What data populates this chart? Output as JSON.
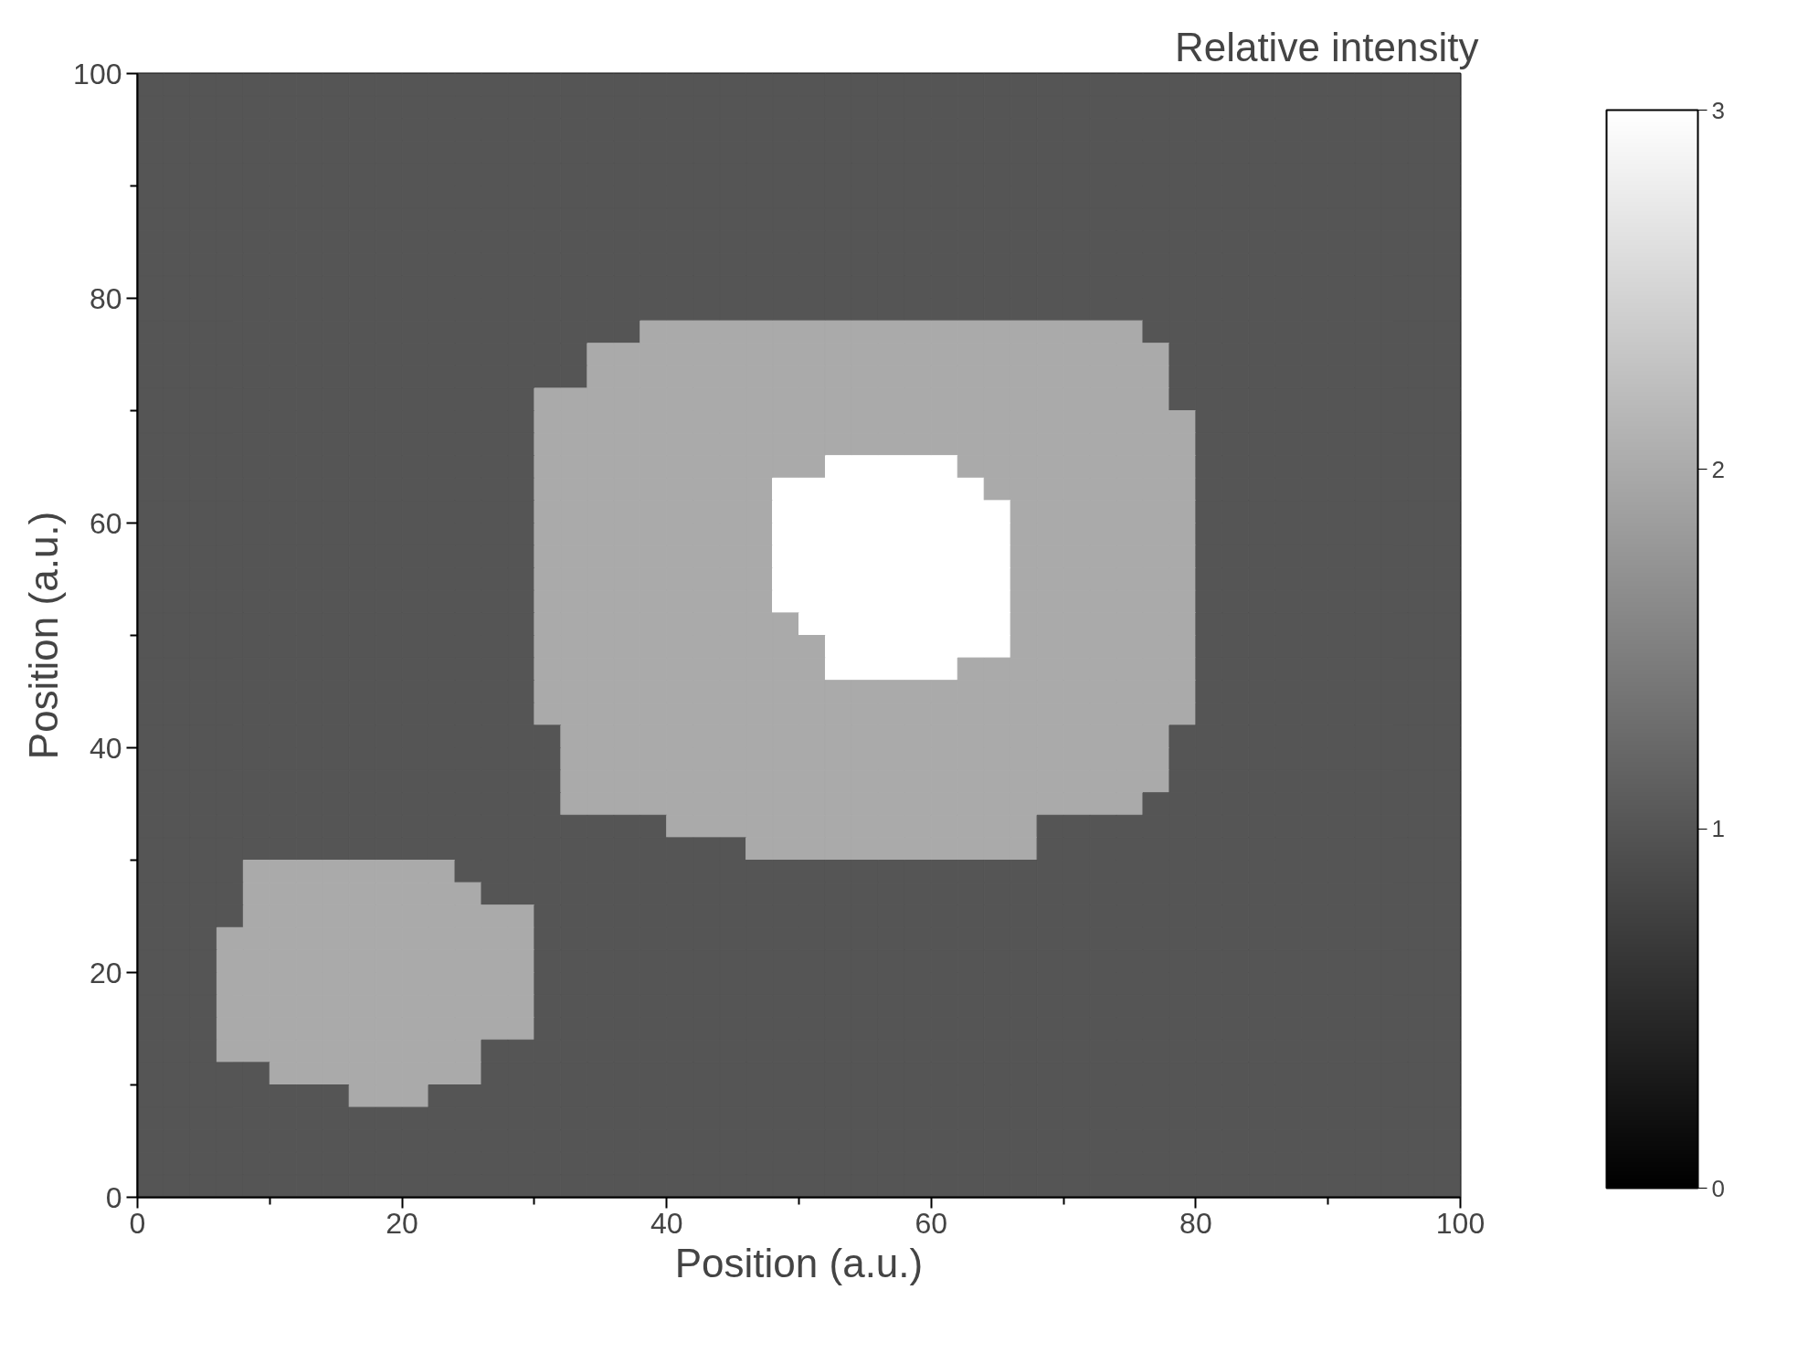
{
  "chart_data": {
    "type": "heatmap",
    "xlabel": "Position (a.u.)",
    "ylabel": "Position (a.u.)",
    "clabel": "Relative intensity",
    "xlim": [
      0,
      100
    ],
    "ylim": [
      0,
      100
    ],
    "xticks": [
      0,
      {
        "value": 10,
        "label": null
      },
      20,
      {
        "value": 30,
        "label": null
      },
      40,
      {
        "value": 50,
        "label": null
      },
      60,
      {
        "value": 70,
        "label": null
      },
      80,
      {
        "value": 90,
        "label": null
      },
      100
    ],
    "yticks": [
      0,
      {
        "value": 10,
        "label": null
      },
      20,
      {
        "value": 30,
        "label": null
      },
      40,
      {
        "value": 50,
        "label": null
      },
      60,
      {
        "value": 70,
        "label": null
      },
      80,
      {
        "value": 90,
        "label": null
      },
      100
    ],
    "clim": [
      0,
      3
    ],
    "cticks": [
      0,
      1,
      2,
      3
    ],
    "cells": [
      [
        1,
        1,
        1,
        1,
        1,
        1,
        1,
        1,
        1,
        1,
        1,
        1,
        1,
        1,
        1,
        1,
        1,
        1,
        1,
        1,
        1,
        1,
        1,
        1,
        1,
        1,
        1,
        1,
        1,
        1,
        1,
        1,
        1,
        1,
        1,
        1,
        1,
        1,
        1,
        1,
        1,
        1,
        1,
        1,
        1,
        1,
        1,
        1,
        1,
        1
      ],
      [
        1,
        1,
        1,
        1,
        1,
        1,
        1,
        1,
        1,
        1,
        1,
        1,
        1,
        1,
        1,
        1,
        1,
        1,
        1,
        1,
        1,
        1,
        1,
        1,
        1,
        1,
        1,
        1,
        1,
        1,
        1,
        1,
        1,
        1,
        1,
        1,
        1,
        1,
        1,
        1,
        1,
        1,
        1,
        1,
        1,
        1,
        1,
        1,
        1,
        1
      ],
      [
        1,
        1,
        1,
        1,
        1,
        1,
        1,
        1,
        1,
        1,
        1,
        1,
        1,
        1,
        1,
        1,
        1,
        1,
        1,
        1,
        1,
        1,
        1,
        1,
        1,
        1,
        1,
        1,
        1,
        1,
        1,
        1,
        1,
        1,
        1,
        1,
        1,
        1,
        1,
        1,
        1,
        1,
        1,
        1,
        1,
        1,
        1,
        1,
        1,
        1
      ],
      [
        1,
        1,
        1,
        1,
        1,
        1,
        1,
        1,
        1,
        1,
        1,
        1,
        1,
        1,
        1,
        1,
        1,
        1,
        1,
        1,
        1,
        1,
        1,
        1,
        1,
        1,
        1,
        1,
        1,
        1,
        1,
        1,
        1,
        1,
        1,
        1,
        1,
        1,
        1,
        1,
        1,
        1,
        1,
        1,
        1,
        1,
        1,
        1,
        1,
        1
      ],
      [
        1,
        1,
        1,
        1,
        1,
        1,
        1,
        1,
        1,
        1,
        1,
        1,
        1,
        1,
        1,
        1,
        1,
        1,
        1,
        1,
        1,
        1,
        1,
        1,
        1,
        1,
        1,
        1,
        1,
        1,
        1,
        1,
        1,
        1,
        1,
        1,
        1,
        1,
        1,
        1,
        1,
        1,
        1,
        1,
        1,
        1,
        1,
        1,
        1,
        1
      ],
      [
        1,
        1,
        1,
        1,
        1,
        1,
        1,
        1,
        1,
        1,
        1,
        1,
        1,
        1,
        1,
        1,
        1,
        1,
        1,
        1,
        1,
        1,
        1,
        1,
        1,
        1,
        1,
        1,
        1,
        1,
        1,
        1,
        1,
        1,
        1,
        1,
        1,
        1,
        1,
        1,
        1,
        1,
        1,
        1,
        1,
        1,
        1,
        1,
        1,
        1
      ],
      [
        1,
        1,
        1,
        1,
        1,
        1,
        1,
        1,
        1,
        1,
        1,
        1,
        1,
        1,
        1,
        1,
        1,
        1,
        1,
        1,
        1,
        1,
        1,
        1,
        1,
        1,
        1,
        1,
        1,
        1,
        1,
        1,
        1,
        1,
        1,
        1,
        1,
        1,
        1,
        1,
        1,
        1,
        1,
        1,
        1,
        1,
        1,
        1,
        1,
        1
      ],
      [
        1,
        1,
        1,
        1,
        1,
        1,
        1,
        1,
        1,
        1,
        1,
        1,
        1,
        1,
        1,
        1,
        1,
        1,
        1,
        1,
        1,
        1,
        1,
        1,
        1,
        1,
        1,
        1,
        1,
        1,
        1,
        1,
        1,
        1,
        1,
        1,
        1,
        1,
        1,
        1,
        1,
        1,
        1,
        1,
        1,
        1,
        1,
        1,
        1,
        1
      ],
      [
        1,
        1,
        1,
        1,
        1,
        1,
        1,
        1,
        1,
        1,
        1,
        1,
        1,
        1,
        1,
        1,
        1,
        1,
        1,
        1,
        1,
        1,
        1,
        1,
        1,
        1,
        1,
        1,
        1,
        1,
        1,
        1,
        1,
        1,
        1,
        1,
        1,
        1,
        1,
        1,
        1,
        1,
        1,
        1,
        1,
        1,
        1,
        1,
        1,
        1
      ],
      [
        1,
        1,
        1,
        1,
        1,
        1,
        1,
        1,
        1,
        1,
        1,
        1,
        1,
        1,
        1,
        1,
        1,
        1,
        1,
        1,
        1,
        1,
        1,
        1,
        1,
        1,
        1,
        1,
        1,
        1,
        1,
        1,
        1,
        1,
        1,
        1,
        1,
        1,
        1,
        1,
        1,
        1,
        1,
        1,
        1,
        1,
        1,
        1,
        1,
        1
      ],
      [
        1,
        1,
        1,
        1,
        1,
        1,
        1,
        1,
        1,
        1,
        1,
        1,
        1,
        1,
        1,
        1,
        1,
        1,
        1,
        1,
        1,
        1,
        1,
        1,
        1,
        1,
        1,
        1,
        1,
        1,
        1,
        1,
        1,
        1,
        1,
        1,
        1,
        1,
        1,
        1,
        1,
        1,
        1,
        1,
        1,
        1,
        1,
        1,
        1,
        1
      ],
      [
        1,
        1,
        1,
        1,
        1,
        1,
        1,
        1,
        1,
        1,
        1,
        1,
        1,
        1,
        1,
        1,
        1,
        1,
        1,
        2,
        2,
        2,
        2,
        2,
        2,
        2,
        2,
        2,
        2,
        2,
        2,
        2,
        2,
        2,
        2,
        2,
        2,
        2,
        1,
        1,
        1,
        1,
        1,
        1,
        1,
        1,
        1,
        1,
        1,
        1
      ],
      [
        1,
        1,
        1,
        1,
        1,
        1,
        1,
        1,
        1,
        1,
        1,
        1,
        1,
        1,
        1,
        1,
        1,
        2,
        2,
        2,
        2,
        2,
        2,
        2,
        2,
        2,
        2,
        2,
        2,
        2,
        2,
        2,
        2,
        2,
        2,
        2,
        2,
        2,
        2,
        1,
        1,
        1,
        1,
        1,
        1,
        1,
        1,
        1,
        1,
        1
      ],
      [
        1,
        1,
        1,
        1,
        1,
        1,
        1,
        1,
        1,
        1,
        1,
        1,
        1,
        1,
        1,
        1,
        1,
        2,
        2,
        2,
        2,
        2,
        2,
        2,
        2,
        2,
        2,
        2,
        2,
        2,
        2,
        2,
        2,
        2,
        2,
        2,
        2,
        2,
        2,
        1,
        1,
        1,
        1,
        1,
        1,
        1,
        1,
        1,
        1,
        1
      ],
      [
        1,
        1,
        1,
        1,
        1,
        1,
        1,
        1,
        1,
        1,
        1,
        1,
        1,
        1,
        1,
        2,
        2,
        2,
        2,
        2,
        2,
        2,
        2,
        2,
        2,
        2,
        2,
        2,
        2,
        2,
        2,
        2,
        2,
        2,
        2,
        2,
        2,
        2,
        2,
        1,
        1,
        1,
        1,
        1,
        1,
        1,
        1,
        1,
        1,
        1
      ],
      [
        1,
        1,
        1,
        1,
        1,
        1,
        1,
        1,
        1,
        1,
        1,
        1,
        1,
        1,
        1,
        2,
        2,
        2,
        2,
        2,
        2,
        2,
        2,
        2,
        2,
        2,
        2,
        2,
        2,
        2,
        2,
        2,
        2,
        2,
        2,
        2,
        2,
        2,
        2,
        2,
        1,
        1,
        1,
        1,
        1,
        1,
        1,
        1,
        1,
        1
      ],
      [
        1,
        1,
        1,
        1,
        1,
        1,
        1,
        1,
        1,
        1,
        1,
        1,
        1,
        1,
        1,
        2,
        2,
        2,
        2,
        2,
        2,
        2,
        2,
        2,
        2,
        2,
        2,
        2,
        2,
        2,
        2,
        2,
        2,
        2,
        2,
        2,
        2,
        2,
        2,
        2,
        1,
        1,
        1,
        1,
        1,
        1,
        1,
        1,
        1,
        1
      ],
      [
        1,
        1,
        1,
        1,
        1,
        1,
        1,
        1,
        1,
        1,
        1,
        1,
        1,
        1,
        1,
        2,
        2,
        2,
        2,
        2,
        2,
        2,
        2,
        2,
        2,
        2,
        3,
        3,
        3,
        3,
        3,
        2,
        2,
        2,
        2,
        2,
        2,
        2,
        2,
        2,
        1,
        1,
        1,
        1,
        1,
        1,
        1,
        1,
        1,
        1
      ],
      [
        1,
        1,
        1,
        1,
        1,
        1,
        1,
        1,
        1,
        1,
        1,
        1,
        1,
        1,
        1,
        2,
        2,
        2,
        2,
        2,
        2,
        2,
        2,
        2,
        3,
        3,
        3,
        3,
        3,
        3,
        3,
        3,
        2,
        2,
        2,
        2,
        2,
        2,
        2,
        2,
        1,
        1,
        1,
        1,
        1,
        1,
        1,
        1,
        1,
        1
      ],
      [
        1,
        1,
        1,
        1,
        1,
        1,
        1,
        1,
        1,
        1,
        1,
        1,
        1,
        1,
        1,
        2,
        2,
        2,
        2,
        2,
        2,
        2,
        2,
        2,
        3,
        3,
        3,
        3,
        3,
        3,
        3,
        3,
        3,
        2,
        2,
        2,
        2,
        2,
        2,
        2,
        1,
        1,
        1,
        1,
        1,
        1,
        1,
        1,
        1,
        1
      ],
      [
        1,
        1,
        1,
        1,
        1,
        1,
        1,
        1,
        1,
        1,
        1,
        1,
        1,
        1,
        1,
        2,
        2,
        2,
        2,
        2,
        2,
        2,
        2,
        2,
        3,
        3,
        3,
        3,
        3,
        3,
        3,
        3,
        3,
        2,
        2,
        2,
        2,
        2,
        2,
        2,
        1,
        1,
        1,
        1,
        1,
        1,
        1,
        1,
        1,
        1
      ],
      [
        1,
        1,
        1,
        1,
        1,
        1,
        1,
        1,
        1,
        1,
        1,
        1,
        1,
        1,
        1,
        2,
        2,
        2,
        2,
        2,
        2,
        2,
        2,
        2,
        3,
        3,
        3,
        3,
        3,
        3,
        3,
        3,
        3,
        2,
        2,
        2,
        2,
        2,
        2,
        2,
        1,
        1,
        1,
        1,
        1,
        1,
        1,
        1,
        1,
        1
      ],
      [
        1,
        1,
        1,
        1,
        1,
        1,
        1,
        1,
        1,
        1,
        1,
        1,
        1,
        1,
        1,
        2,
        2,
        2,
        2,
        2,
        2,
        2,
        2,
        2,
        3,
        3,
        3,
        3,
        3,
        3,
        3,
        3,
        3,
        2,
        2,
        2,
        2,
        2,
        2,
        2,
        1,
        1,
        1,
        1,
        1,
        1,
        1,
        1,
        1,
        1
      ],
      [
        1,
        1,
        1,
        1,
        1,
        1,
        1,
        1,
        1,
        1,
        1,
        1,
        1,
        1,
        1,
        2,
        2,
        2,
        2,
        2,
        2,
        2,
        2,
        2,
        3,
        3,
        3,
        3,
        3,
        3,
        3,
        3,
        3,
        2,
        2,
        2,
        2,
        2,
        2,
        2,
        1,
        1,
        1,
        1,
        1,
        1,
        1,
        1,
        1,
        1
      ],
      [
        1,
        1,
        1,
        1,
        1,
        1,
        1,
        1,
        1,
        1,
        1,
        1,
        1,
        1,
        1,
        2,
        2,
        2,
        2,
        2,
        2,
        2,
        2,
        2,
        2,
        3,
        3,
        3,
        3,
        3,
        3,
        3,
        3,
        2,
        2,
        2,
        2,
        2,
        2,
        2,
        1,
        1,
        1,
        1,
        1,
        1,
        1,
        1,
        1,
        1
      ],
      [
        1,
        1,
        1,
        1,
        1,
        1,
        1,
        1,
        1,
        1,
        1,
        1,
        1,
        1,
        1,
        2,
        2,
        2,
        2,
        2,
        2,
        2,
        2,
        2,
        2,
        2,
        3,
        3,
        3,
        3,
        3,
        3,
        3,
        2,
        2,
        2,
        2,
        2,
        2,
        2,
        1,
        1,
        1,
        1,
        1,
        1,
        1,
        1,
        1,
        1
      ],
      [
        1,
        1,
        1,
        1,
        1,
        1,
        1,
        1,
        1,
        1,
        1,
        1,
        1,
        1,
        1,
        2,
        2,
        2,
        2,
        2,
        2,
        2,
        2,
        2,
        2,
        2,
        3,
        3,
        3,
        3,
        3,
        2,
        2,
        2,
        2,
        2,
        2,
        2,
        2,
        2,
        1,
        1,
        1,
        1,
        1,
        1,
        1,
        1,
        1,
        1
      ],
      [
        1,
        1,
        1,
        1,
        1,
        1,
        1,
        1,
        1,
        1,
        1,
        1,
        1,
        1,
        1,
        2,
        2,
        2,
        2,
        2,
        2,
        2,
        2,
        2,
        2,
        2,
        2,
        2,
        2,
        2,
        2,
        2,
        2,
        2,
        2,
        2,
        2,
        2,
        2,
        2,
        1,
        1,
        1,
        1,
        1,
        1,
        1,
        1,
        1,
        1
      ],
      [
        1,
        1,
        1,
        1,
        1,
        1,
        1,
        1,
        1,
        1,
        1,
        1,
        1,
        1,
        1,
        2,
        2,
        2,
        2,
        2,
        2,
        2,
        2,
        2,
        2,
        2,
        2,
        2,
        2,
        2,
        2,
        2,
        2,
        2,
        2,
        2,
        2,
        2,
        2,
        2,
        1,
        1,
        1,
        1,
        1,
        1,
        1,
        1,
        1,
        1
      ],
      [
        1,
        1,
        1,
        1,
        1,
        1,
        1,
        1,
        1,
        1,
        1,
        1,
        1,
        1,
        1,
        1,
        2,
        2,
        2,
        2,
        2,
        2,
        2,
        2,
        2,
        2,
        2,
        2,
        2,
        2,
        2,
        2,
        2,
        2,
        2,
        2,
        2,
        2,
        2,
        1,
        1,
        1,
        1,
        1,
        1,
        1,
        1,
        1,
        1,
        1
      ],
      [
        1,
        1,
        1,
        1,
        1,
        1,
        1,
        1,
        1,
        1,
        1,
        1,
        1,
        1,
        1,
        1,
        2,
        2,
        2,
        2,
        2,
        2,
        2,
        2,
        2,
        2,
        2,
        2,
        2,
        2,
        2,
        2,
        2,
        2,
        2,
        2,
        2,
        2,
        2,
        1,
        1,
        1,
        1,
        1,
        1,
        1,
        1,
        1,
        1,
        1
      ],
      [
        1,
        1,
        1,
        1,
        1,
        1,
        1,
        1,
        1,
        1,
        1,
        1,
        1,
        1,
        1,
        1,
        2,
        2,
        2,
        2,
        2,
        2,
        2,
        2,
        2,
        2,
        2,
        2,
        2,
        2,
        2,
        2,
        2,
        2,
        2,
        2,
        2,
        2,
        2,
        1,
        1,
        1,
        1,
        1,
        1,
        1,
        1,
        1,
        1,
        1
      ],
      [
        1,
        1,
        1,
        1,
        1,
        1,
        1,
        1,
        1,
        1,
        1,
        1,
        1,
        1,
        1,
        1,
        2,
        2,
        2,
        2,
        2,
        2,
        2,
        2,
        2,
        2,
        2,
        2,
        2,
        2,
        2,
        2,
        2,
        2,
        2,
        2,
        2,
        2,
        1,
        1,
        1,
        1,
        1,
        1,
        1,
        1,
        1,
        1,
        1,
        1
      ],
      [
        1,
        1,
        1,
        1,
        1,
        1,
        1,
        1,
        1,
        1,
        1,
        1,
        1,
        1,
        1,
        1,
        1,
        1,
        1,
        1,
        2,
        2,
        2,
        2,
        2,
        2,
        2,
        2,
        2,
        2,
        2,
        2,
        2,
        2,
        1,
        1,
        1,
        1,
        1,
        1,
        1,
        1,
        1,
        1,
        1,
        1,
        1,
        1,
        1,
        1
      ],
      [
        1,
        1,
        1,
        1,
        1,
        1,
        1,
        1,
        1,
        1,
        1,
        1,
        1,
        1,
        1,
        1,
        1,
        1,
        1,
        1,
        1,
        1,
        1,
        2,
        2,
        2,
        2,
        2,
        2,
        2,
        2,
        2,
        2,
        2,
        1,
        1,
        1,
        1,
        1,
        1,
        1,
        1,
        1,
        1,
        1,
        1,
        1,
        1,
        1,
        1
      ],
      [
        1,
        1,
        1,
        1,
        2,
        2,
        2,
        2,
        2,
        2,
        2,
        2,
        1,
        1,
        1,
        1,
        1,
        1,
        1,
        1,
        1,
        1,
        1,
        1,
        1,
        1,
        1,
        1,
        1,
        1,
        1,
        1,
        1,
        1,
        1,
        1,
        1,
        1,
        1,
        1,
        1,
        1,
        1,
        1,
        1,
        1,
        1,
        1,
        1,
        1
      ],
      [
        1,
        1,
        1,
        1,
        2,
        2,
        2,
        2,
        2,
        2,
        2,
        2,
        2,
        1,
        1,
        1,
        1,
        1,
        1,
        1,
        1,
        1,
        1,
        1,
        1,
        1,
        1,
        1,
        1,
        1,
        1,
        1,
        1,
        1,
        1,
        1,
        1,
        1,
        1,
        1,
        1,
        1,
        1,
        1,
        1,
        1,
        1,
        1,
        1,
        1
      ],
      [
        1,
        1,
        1,
        1,
        2,
        2,
        2,
        2,
        2,
        2,
        2,
        2,
        2,
        2,
        2,
        1,
        1,
        1,
        1,
        1,
        1,
        1,
        1,
        1,
        1,
        1,
        1,
        1,
        1,
        1,
        1,
        1,
        1,
        1,
        1,
        1,
        1,
        1,
        1,
        1,
        1,
        1,
        1,
        1,
        1,
        1,
        1,
        1,
        1,
        1
      ],
      [
        1,
        1,
        1,
        2,
        2,
        2,
        2,
        2,
        2,
        2,
        2,
        2,
        2,
        2,
        2,
        1,
        1,
        1,
        1,
        1,
        1,
        1,
        1,
        1,
        1,
        1,
        1,
        1,
        1,
        1,
        1,
        1,
        1,
        1,
        1,
        1,
        1,
        1,
        1,
        1,
        1,
        1,
        1,
        1,
        1,
        1,
        1,
        1,
        1,
        1
      ],
      [
        1,
        1,
        1,
        2,
        2,
        2,
        2,
        2,
        2,
        2,
        2,
        2,
        2,
        2,
        2,
        1,
        1,
        1,
        1,
        1,
        1,
        1,
        1,
        1,
        1,
        1,
        1,
        1,
        1,
        1,
        1,
        1,
        1,
        1,
        1,
        1,
        1,
        1,
        1,
        1,
        1,
        1,
        1,
        1,
        1,
        1,
        1,
        1,
        1,
        1
      ],
      [
        1,
        1,
        1,
        2,
        2,
        2,
        2,
        2,
        2,
        2,
        2,
        2,
        2,
        2,
        2,
        1,
        1,
        1,
        1,
        1,
        1,
        1,
        1,
        1,
        1,
        1,
        1,
        1,
        1,
        1,
        1,
        1,
        1,
        1,
        1,
        1,
        1,
        1,
        1,
        1,
        1,
        1,
        1,
        1,
        1,
        1,
        1,
        1,
        1,
        1
      ],
      [
        1,
        1,
        1,
        2,
        2,
        2,
        2,
        2,
        2,
        2,
        2,
        2,
        2,
        2,
        2,
        1,
        1,
        1,
        1,
        1,
        1,
        1,
        1,
        1,
        1,
        1,
        1,
        1,
        1,
        1,
        1,
        1,
        1,
        1,
        1,
        1,
        1,
        1,
        1,
        1,
        1,
        1,
        1,
        1,
        1,
        1,
        1,
        1,
        1,
        1
      ],
      [
        1,
        1,
        1,
        2,
        2,
        2,
        2,
        2,
        2,
        2,
        2,
        2,
        2,
        2,
        2,
        1,
        1,
        1,
        1,
        1,
        1,
        1,
        1,
        1,
        1,
        1,
        1,
        1,
        1,
        1,
        1,
        1,
        1,
        1,
        1,
        1,
        1,
        1,
        1,
        1,
        1,
        1,
        1,
        1,
        1,
        1,
        1,
        1,
        1,
        1
      ],
      [
        1,
        1,
        1,
        2,
        2,
        2,
        2,
        2,
        2,
        2,
        2,
        2,
        2,
        1,
        1,
        1,
        1,
        1,
        1,
        1,
        1,
        1,
        1,
        1,
        1,
        1,
        1,
        1,
        1,
        1,
        1,
        1,
        1,
        1,
        1,
        1,
        1,
        1,
        1,
        1,
        1,
        1,
        1,
        1,
        1,
        1,
        1,
        1,
        1,
        1
      ],
      [
        1,
        1,
        1,
        1,
        1,
        2,
        2,
        2,
        2,
        2,
        2,
        2,
        2,
        1,
        1,
        1,
        1,
        1,
        1,
        1,
        1,
        1,
        1,
        1,
        1,
        1,
        1,
        1,
        1,
        1,
        1,
        1,
        1,
        1,
        1,
        1,
        1,
        1,
        1,
        1,
        1,
        1,
        1,
        1,
        1,
        1,
        1,
        1,
        1,
        1
      ],
      [
        1,
        1,
        1,
        1,
        1,
        1,
        1,
        1,
        2,
        2,
        2,
        1,
        1,
        1,
        1,
        1,
        1,
        1,
        1,
        1,
        1,
        1,
        1,
        1,
        1,
        1,
        1,
        1,
        1,
        1,
        1,
        1,
        1,
        1,
        1,
        1,
        1,
        1,
        1,
        1,
        1,
        1,
        1,
        1,
        1,
        1,
        1,
        1,
        1,
        1
      ],
      [
        1,
        1,
        1,
        1,
        1,
        1,
        1,
        1,
        1,
        1,
        1,
        1,
        1,
        1,
        1,
        1,
        1,
        1,
        1,
        1,
        1,
        1,
        1,
        1,
        1,
        1,
        1,
        1,
        1,
        1,
        1,
        1,
        1,
        1,
        1,
        1,
        1,
        1,
        1,
        1,
        1,
        1,
        1,
        1,
        1,
        1,
        1,
        1,
        1,
        1
      ],
      [
        1,
        1,
        1,
        1,
        1,
        1,
        1,
        1,
        1,
        1,
        1,
        1,
        1,
        1,
        1,
        1,
        1,
        1,
        1,
        1,
        1,
        1,
        1,
        1,
        1,
        1,
        1,
        1,
        1,
        1,
        1,
        1,
        1,
        1,
        1,
        1,
        1,
        1,
        1,
        1,
        1,
        1,
        1,
        1,
        1,
        1,
        1,
        1,
        1,
        1
      ],
      [
        1,
        1,
        1,
        1,
        1,
        1,
        1,
        1,
        1,
        1,
        1,
        1,
        1,
        1,
        1,
        1,
        1,
        1,
        1,
        1,
        1,
        1,
        1,
        1,
        1,
        1,
        1,
        1,
        1,
        1,
        1,
        1,
        1,
        1,
        1,
        1,
        1,
        1,
        1,
        1,
        1,
        1,
        1,
        1,
        1,
        1,
        1,
        1,
        1,
        1
      ],
      [
        1,
        1,
        1,
        1,
        1,
        1,
        1,
        1,
        1,
        1,
        1,
        1,
        1,
        1,
        1,
        1,
        1,
        1,
        1,
        1,
        1,
        1,
        1,
        1,
        1,
        1,
        1,
        1,
        1,
        1,
        1,
        1,
        1,
        1,
        1,
        1,
        1,
        1,
        1,
        1,
        1,
        1,
        1,
        1,
        1,
        1,
        1,
        1,
        1,
        1
      ]
    ]
  }
}
